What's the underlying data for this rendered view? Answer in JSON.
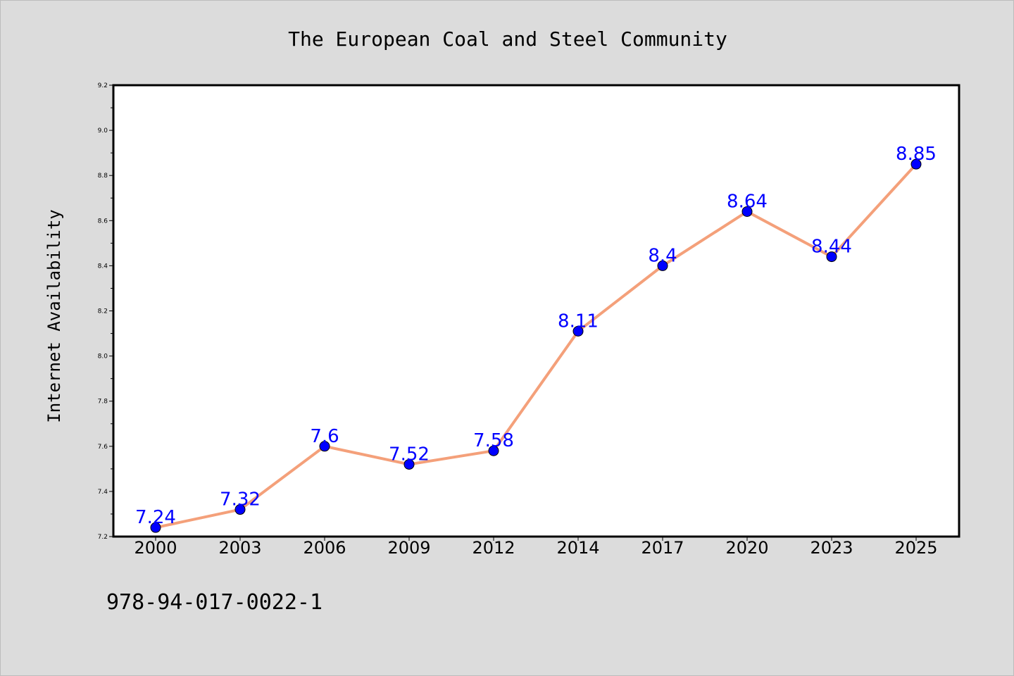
{
  "footer_text": "978-94-017-0022-1",
  "colors": {
    "background": "#dcdcdc",
    "plot_background": "#ffffff",
    "line": "#f4a07a",
    "marker": "#0000ff",
    "data_label": "#0000ff"
  },
  "chart_data": {
    "type": "line",
    "title": "The European Coal and Steel Community",
    "xlabel": "",
    "ylabel": "Internet Availability",
    "categories": [
      "2000",
      "2003",
      "2006",
      "2009",
      "2012",
      "2014",
      "2017",
      "2020",
      "2023",
      "2025"
    ],
    "series": [
      {
        "values": [
          7.24,
          7.32,
          7.6,
          7.52,
          7.58,
          8.11,
          8.4,
          8.64,
          8.44,
          8.85
        ],
        "labels": [
          "7.24",
          "7.32",
          "7.6",
          "7.52",
          "7.58",
          "8.11",
          "8.4",
          "8.64",
          "8.44",
          "8.85"
        ]
      }
    ],
    "ylim": [
      7.2,
      9.2
    ],
    "yticks": [
      "7.2",
      "7.4",
      "7.6",
      "7.8",
      "8.0",
      "8.2",
      "8.4",
      "8.6",
      "8.8",
      "9.0",
      "9.2"
    ],
    "grid": false,
    "legend": false
  }
}
